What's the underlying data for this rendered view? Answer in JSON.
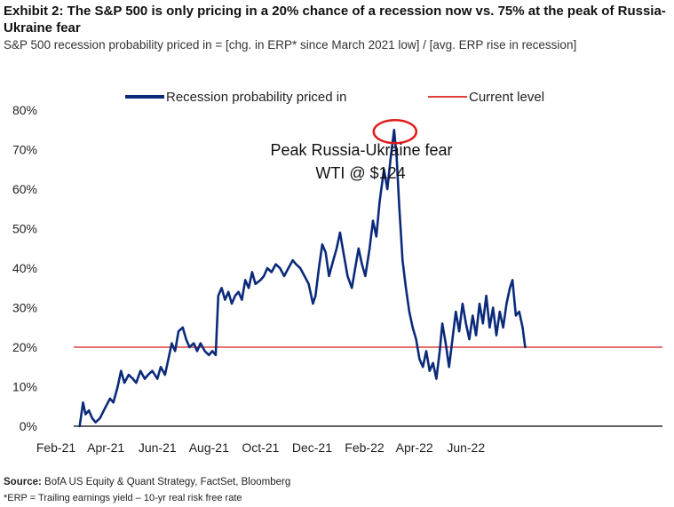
{
  "title": "Exhibit 2: The S&P 500 is only pricing in a 20% chance of a recession now vs. 75% at the peak of Russia-Ukraine fear",
  "subtitle": "S&P 500 recession probability priced in = [chg. in ERP* since March 2021 low] / [avg. ERP rise in recession]",
  "source_label": "Source:",
  "source_text": " BofA US Equity & Quant Strategy, FactSet, Bloomberg",
  "footnote": "*ERP = Trailing earnings yield – 10-yr real risk free rate",
  "colors": {
    "series": "#0b2a7a",
    "current_level": "#e0403c",
    "annotation_circle": "#e01b1b"
  },
  "chart_data": {
    "type": "line",
    "xlabel": "",
    "ylabel": "",
    "x_tick_labels": [
      "Feb-21",
      "Apr-21",
      "Jun-21",
      "Aug-21",
      "Oct-21",
      "Dec-21",
      "Feb-22",
      "Apr-22",
      "Jun-22"
    ],
    "y_tick_labels": [
      "0%",
      "10%",
      "20%",
      "30%",
      "40%",
      "50%",
      "60%",
      "70%",
      "80%"
    ],
    "ylim": [
      0,
      80
    ],
    "legend_position": "top",
    "current_level": {
      "name": "Current level",
      "value": 20
    },
    "annotation": {
      "line1": "Peak Russia-Ukraine fear",
      "line2": "WTI @ $124",
      "at": [
        "2022-03-08",
        75
      ]
    },
    "series": [
      {
        "name": "Recession probability priced in",
        "points": [
          [
            "2021-03-01",
            0
          ],
          [
            "2021-03-05",
            6
          ],
          [
            "2021-03-08",
            3
          ],
          [
            "2021-03-12",
            4
          ],
          [
            "2021-03-16",
            2
          ],
          [
            "2021-03-20",
            1
          ],
          [
            "2021-03-25",
            2
          ],
          [
            "2021-04-01",
            5
          ],
          [
            "2021-04-06",
            7
          ],
          [
            "2021-04-10",
            6
          ],
          [
            "2021-04-15",
            10
          ],
          [
            "2021-04-19",
            14
          ],
          [
            "2021-04-23",
            11
          ],
          [
            "2021-04-28",
            13
          ],
          [
            "2021-05-03",
            12
          ],
          [
            "2021-05-07",
            11
          ],
          [
            "2021-05-12",
            14
          ],
          [
            "2021-05-17",
            12
          ],
          [
            "2021-05-21",
            13
          ],
          [
            "2021-05-26",
            14
          ],
          [
            "2021-06-01",
            12
          ],
          [
            "2021-06-05",
            15
          ],
          [
            "2021-06-10",
            13
          ],
          [
            "2021-06-15",
            18
          ],
          [
            "2021-06-18",
            21
          ],
          [
            "2021-06-22",
            19
          ],
          [
            "2021-06-26",
            24
          ],
          [
            "2021-07-01",
            25
          ],
          [
            "2021-07-05",
            22
          ],
          [
            "2021-07-09",
            20
          ],
          [
            "2021-07-14",
            21
          ],
          [
            "2021-07-18",
            19
          ],
          [
            "2021-07-22",
            21
          ],
          [
            "2021-07-27",
            19
          ],
          [
            "2021-08-01",
            18
          ],
          [
            "2021-08-05",
            19
          ],
          [
            "2021-08-09",
            18
          ],
          [
            "2021-08-12",
            33
          ],
          [
            "2021-08-16",
            35
          ],
          [
            "2021-08-20",
            32
          ],
          [
            "2021-08-24",
            34
          ],
          [
            "2021-08-28",
            31
          ],
          [
            "2021-09-01",
            33
          ],
          [
            "2021-09-05",
            34
          ],
          [
            "2021-09-09",
            32
          ],
          [
            "2021-09-13",
            37
          ],
          [
            "2021-09-17",
            35
          ],
          [
            "2021-09-21",
            39
          ],
          [
            "2021-09-25",
            36
          ],
          [
            "2021-10-01",
            37
          ],
          [
            "2021-10-05",
            38
          ],
          [
            "2021-10-09",
            40
          ],
          [
            "2021-10-14",
            39
          ],
          [
            "2021-10-19",
            41
          ],
          [
            "2021-10-24",
            40
          ],
          [
            "2021-10-29",
            38
          ],
          [
            "2021-11-03",
            40
          ],
          [
            "2021-11-08",
            42
          ],
          [
            "2021-11-12",
            41
          ],
          [
            "2021-11-17",
            40
          ],
          [
            "2021-11-22",
            38
          ],
          [
            "2021-11-27",
            36
          ],
          [
            "2021-12-02",
            31
          ],
          [
            "2021-12-05",
            33
          ],
          [
            "2021-12-09",
            40
          ],
          [
            "2021-12-13",
            46
          ],
          [
            "2021-12-17",
            44
          ],
          [
            "2021-12-21",
            38
          ],
          [
            "2021-12-26",
            42
          ],
          [
            "2021-12-30",
            45
          ],
          [
            "2022-01-03",
            49
          ],
          [
            "2022-01-07",
            44
          ],
          [
            "2022-01-12",
            38
          ],
          [
            "2022-01-17",
            35
          ],
          [
            "2022-01-21",
            40
          ],
          [
            "2022-01-25",
            45
          ],
          [
            "2022-01-29",
            41
          ],
          [
            "2022-02-02",
            38
          ],
          [
            "2022-02-07",
            45
          ],
          [
            "2022-02-11",
            52
          ],
          [
            "2022-02-15",
            48
          ],
          [
            "2022-02-19",
            57
          ],
          [
            "2022-02-24",
            65
          ],
          [
            "2022-02-28",
            60
          ],
          [
            "2022-03-04",
            68
          ],
          [
            "2022-03-08",
            75
          ],
          [
            "2022-03-11",
            68
          ],
          [
            "2022-03-14",
            56
          ],
          [
            "2022-03-18",
            42
          ],
          [
            "2022-03-22",
            35
          ],
          [
            "2022-03-26",
            29
          ],
          [
            "2022-03-30",
            25
          ],
          [
            "2022-04-03",
            22
          ],
          [
            "2022-04-07",
            17
          ],
          [
            "2022-04-11",
            15
          ],
          [
            "2022-04-15",
            19
          ],
          [
            "2022-04-19",
            14
          ],
          [
            "2022-04-23",
            16
          ],
          [
            "2022-04-27",
            12
          ],
          [
            "2022-05-01",
            19
          ],
          [
            "2022-05-04",
            26
          ],
          [
            "2022-05-08",
            21
          ],
          [
            "2022-05-12",
            15
          ],
          [
            "2022-05-16",
            22
          ],
          [
            "2022-05-20",
            29
          ],
          [
            "2022-05-24",
            24
          ],
          [
            "2022-05-28",
            31
          ],
          [
            "2022-06-01",
            26
          ],
          [
            "2022-06-05",
            22
          ],
          [
            "2022-06-09",
            28
          ],
          [
            "2022-06-13",
            23
          ],
          [
            "2022-06-17",
            31
          ],
          [
            "2022-06-21",
            26
          ],
          [
            "2022-06-25",
            33
          ],
          [
            "2022-06-29",
            25
          ],
          [
            "2022-07-03",
            30
          ],
          [
            "2022-07-07",
            23
          ],
          [
            "2022-07-11",
            29
          ],
          [
            "2022-07-15",
            25
          ],
          [
            "2022-07-19",
            31
          ],
          [
            "2022-07-23",
            35
          ],
          [
            "2022-07-26",
            37
          ],
          [
            "2022-07-30",
            28
          ],
          [
            "2022-08-03",
            29
          ],
          [
            "2022-08-07",
            25
          ],
          [
            "2022-08-10",
            20
          ]
        ]
      }
    ]
  }
}
